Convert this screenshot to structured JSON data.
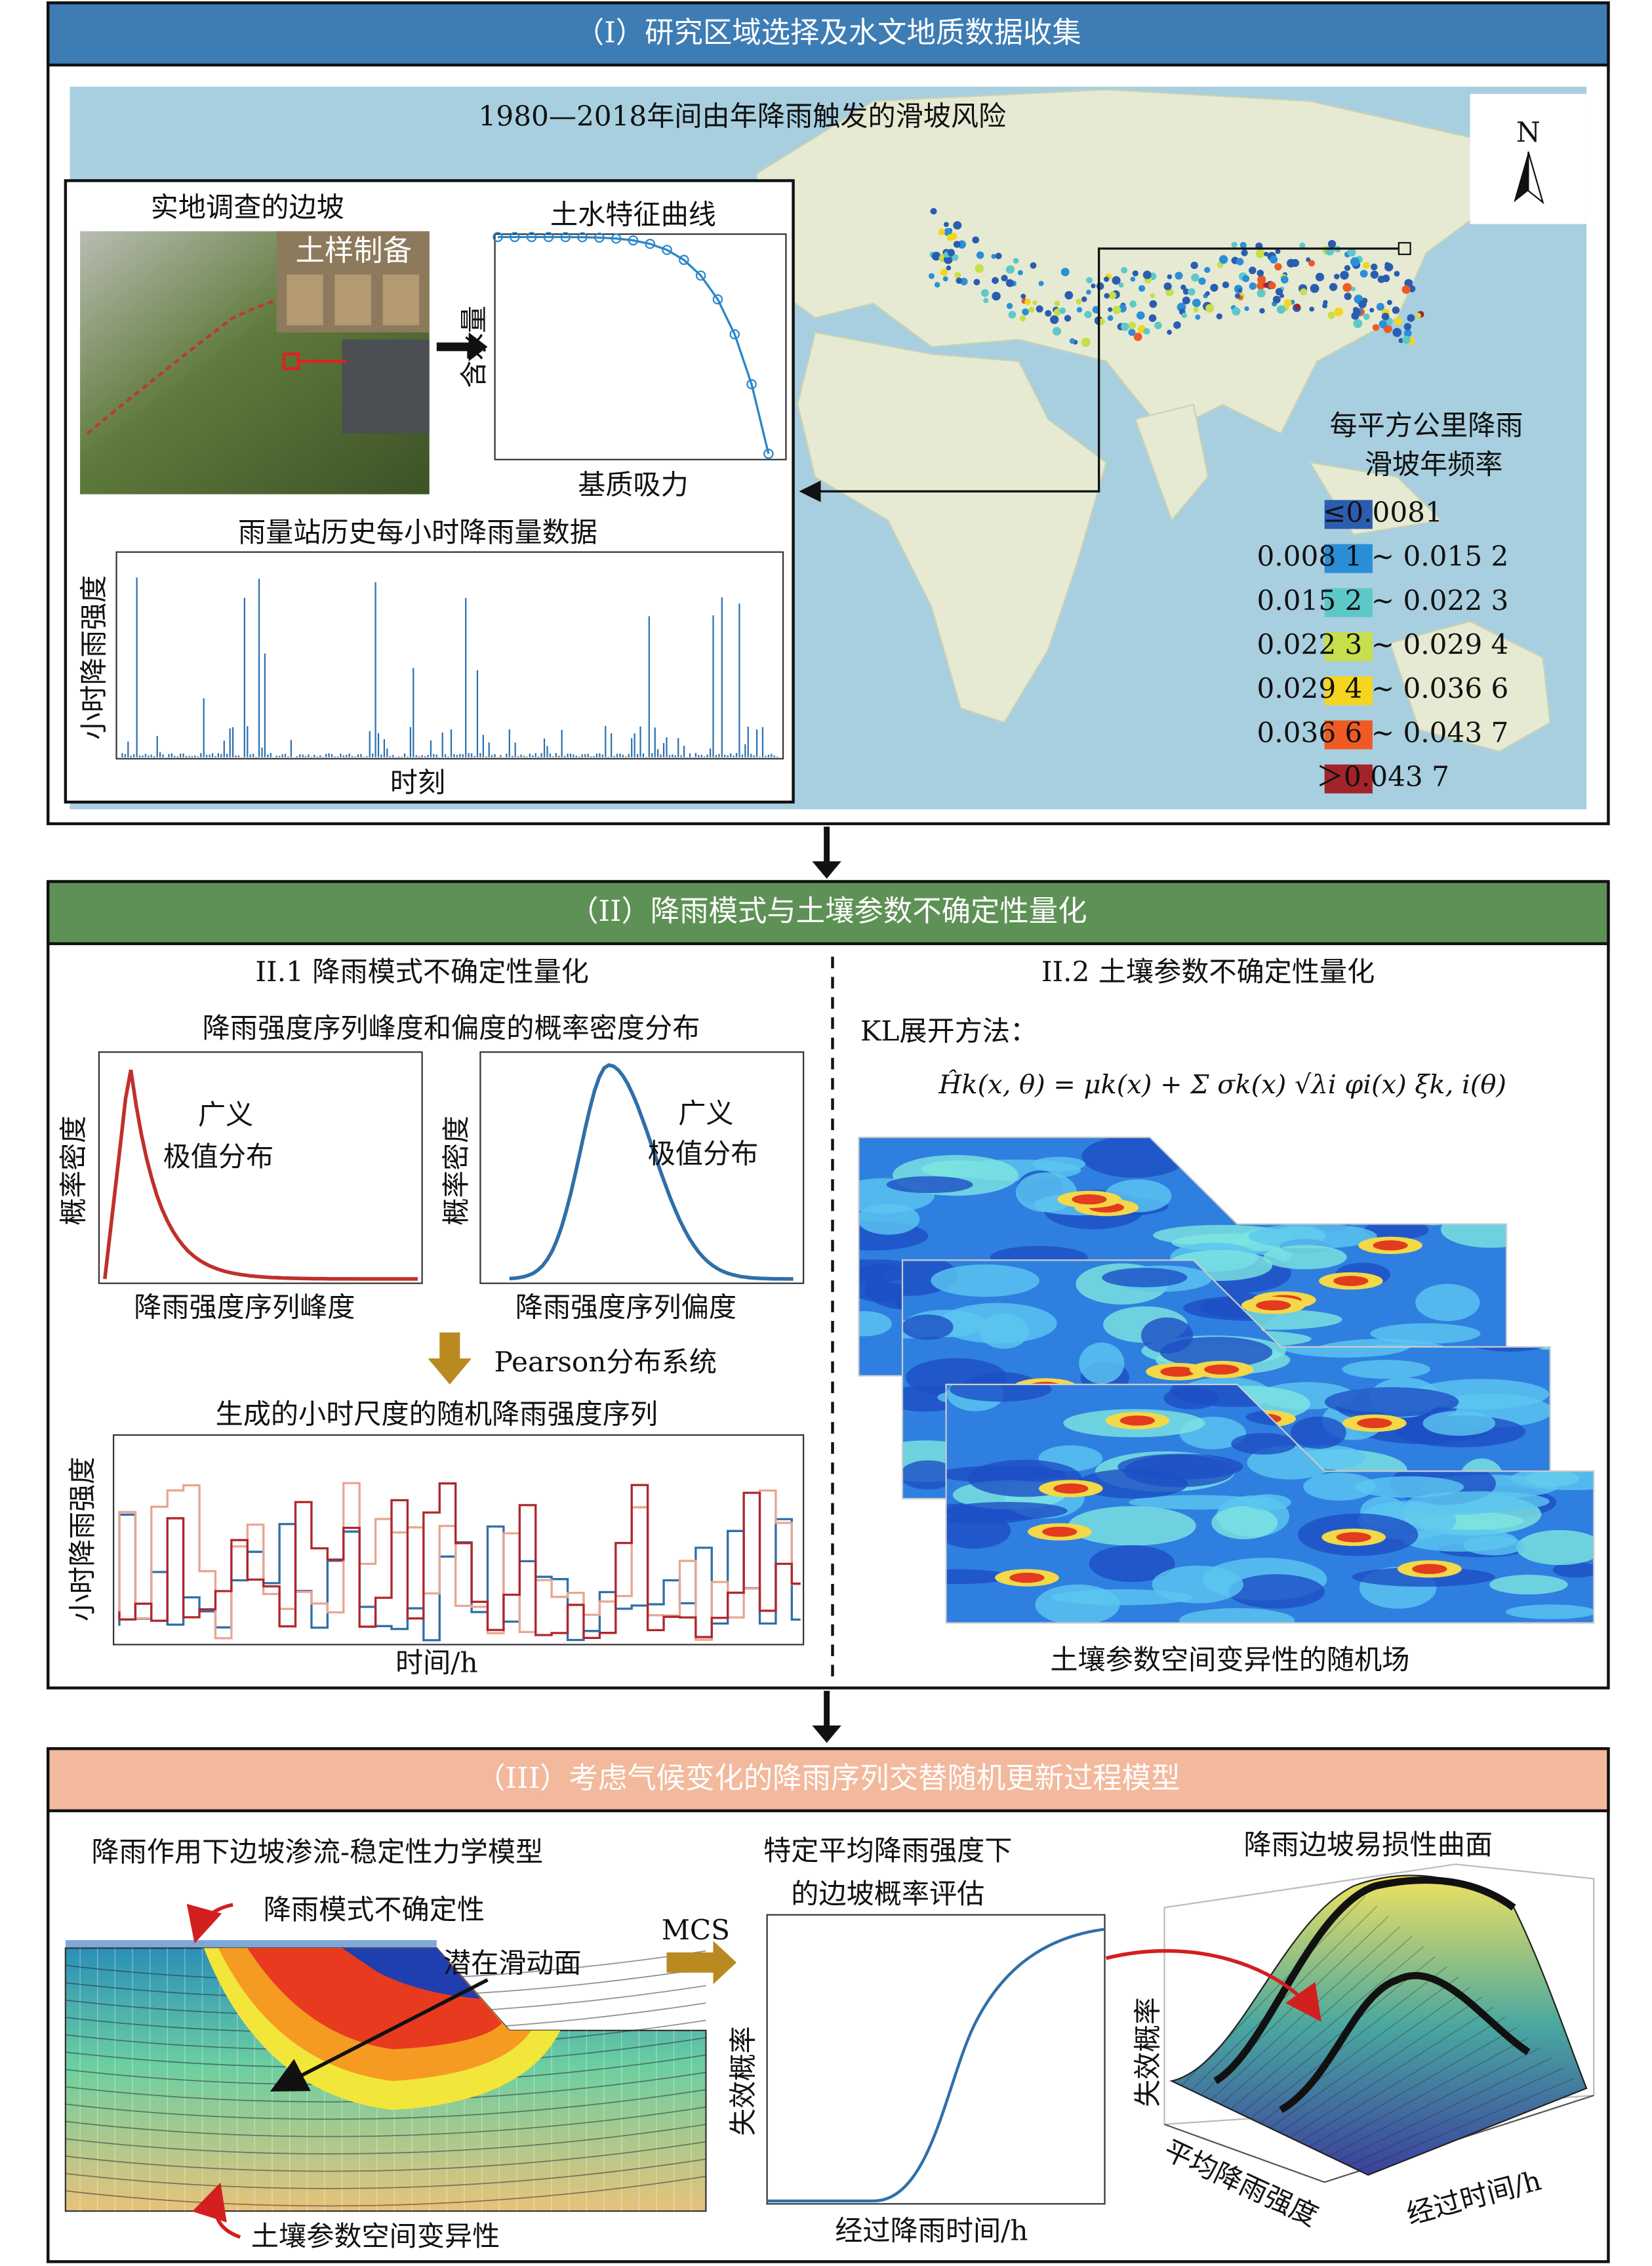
{
  "section1": {
    "title": "（I）研究区域选择及水文地质数据收集",
    "map_title": "1980—2018年间由年降雨触发的滑坡风险",
    "north": "N",
    "photo_label": "实地调查的边坡",
    "soil_sample": "土样制备",
    "swcc": {
      "title": "土水特征曲线",
      "y_label": "含水量",
      "x_label": "基质吸力"
    },
    "rain": {
      "title": "雨量站历史每小时降雨量数据",
      "y_label": "小时降雨强度",
      "x_label": "时刻"
    },
    "legend": {
      "title_lines": [
        "每平方公里降雨",
        "滑坡年频率"
      ],
      "items": [
        {
          "label": "≤0.0081",
          "color": "#2a5db0"
        },
        {
          "label": "0.008 1 ~ 0.015 2",
          "color": "#2a8fd8"
        },
        {
          "label": "0.015 2 ~ 0.022 3",
          "color": "#5ec8c8"
        },
        {
          "label": "0.022 3 ~ 0.029 4",
          "color": "#c6df4a"
        },
        {
          "label": "0.029 4 ~ 0.036 6",
          "color": "#f5d51f"
        },
        {
          "label": "0.036 6 ~ 0.043 7",
          "color": "#ef5a24"
        },
        {
          "label": "＞0.043 7",
          "color": "#a3232b"
        }
      ]
    }
  },
  "section2": {
    "title": "（II）降雨模式与土壤参数不确定性量化",
    "left_heading": "II.1 降雨模式不确定性量化",
    "right_heading": "II.2 土壤参数不确定性量化",
    "pdf_title": "降雨强度序列峰度和偏度的概率密度分布",
    "pdf_left": {
      "y_label": "概率密度",
      "lines": [
        "广义",
        "极值分布"
      ],
      "x_label": "降雨强度序列峰度"
    },
    "pdf_right": {
      "y_label": "概率密度",
      "lines": [
        "广义",
        "极值分布"
      ],
      "x_label": "降雨强度序列偏度"
    },
    "pearson": "Pearson分布系统",
    "generated": {
      "title": "生成的小时尺度的随机降雨强度序列",
      "y_label": "小时降雨强度",
      "x_label": "时间/h"
    },
    "kl": "KL展开方法：",
    "formula": "Ĥk(x, θ) = μk(x) + Σ σk(x) √λi φi(x) ξk, i(θ)",
    "field_caption": "土壤参数空间变异性的随机场"
  },
  "section3": {
    "title": "（III）考虑气候变化的降雨序列交替随机更新过程模型",
    "model_title": "降雨作用下边坡渗流-稳定性力学模型",
    "rain_uncertainty": "降雨模式不确定性",
    "slip_surface": "潜在滑动面",
    "soil_variability": "土壤参数空间变异性",
    "mcs": "MCS",
    "prob_title_lines": [
      "特定平均降雨强度下",
      "的边坡概率评估"
    ],
    "prob_y_label": "失效概率",
    "prob_x_label": "经过降雨时间/h",
    "surface_title": "降雨边坡易损性曲面",
    "surface_z_label": "失效概率",
    "surface_x_label": "平均降雨强度",
    "surface_y_label": "经过时间/h"
  }
}
